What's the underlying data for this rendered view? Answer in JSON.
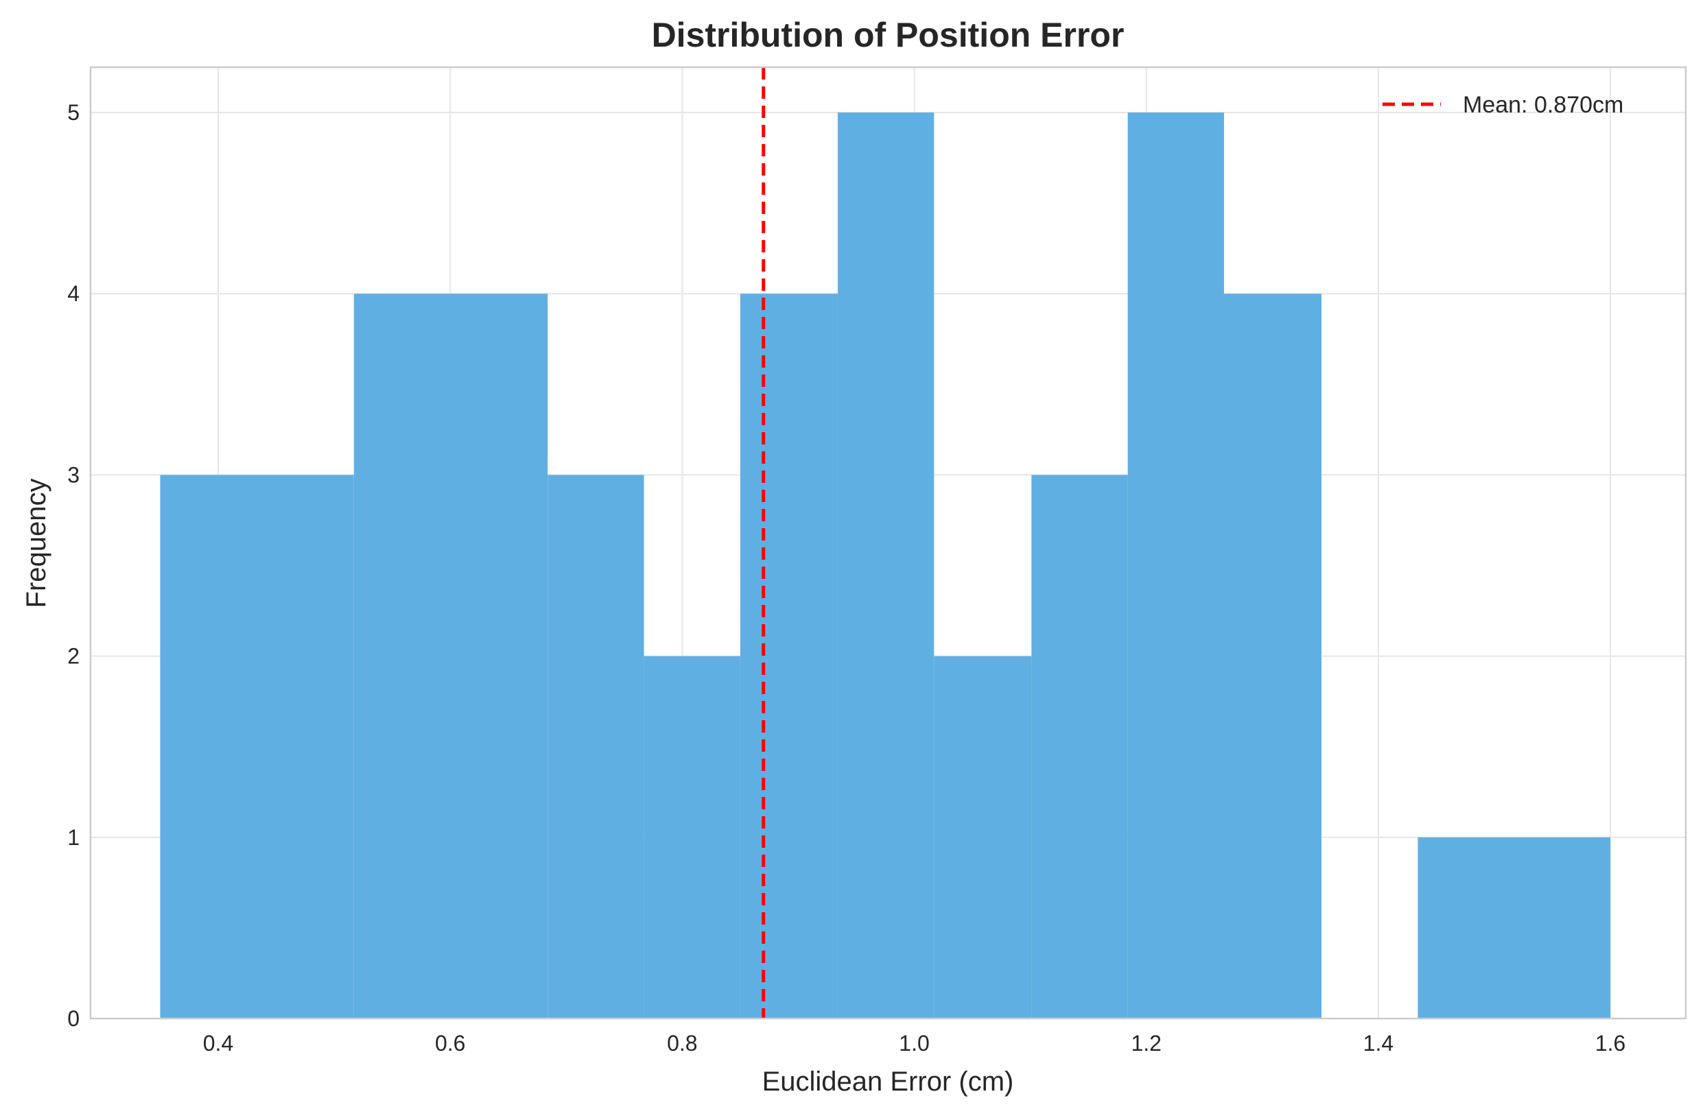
{
  "chart_data": {
    "type": "bar",
    "title": "Distribution of Position Error",
    "xlabel": "Euclidean Error (cm)",
    "ylabel": "Frequency",
    "xlim": [
      0.29,
      1.665
    ],
    "ylim": [
      0,
      5.25
    ],
    "xticks": [
      "0.4",
      "0.6",
      "0.8",
      "1.0",
      "1.2",
      "1.4",
      "1.6"
    ],
    "xtick_values": [
      0.4,
      0.6,
      0.8,
      1.0,
      1.2,
      1.4,
      1.6
    ],
    "yticks": [
      "0",
      "1",
      "2",
      "3",
      "4",
      "5"
    ],
    "ytick_values": [
      0,
      1,
      2,
      3,
      4,
      5
    ],
    "grid": true,
    "legend_position": "top-right",
    "bins": [
      {
        "x0": 0.35,
        "x1": 0.517,
        "count": 3
      },
      {
        "x0": 0.517,
        "x1": 0.684,
        "count": 4
      },
      {
        "x0": 0.684,
        "x1": 0.767,
        "count": 3
      },
      {
        "x0": 0.767,
        "x1": 0.85,
        "count": 2
      },
      {
        "x0": 0.85,
        "x1": 0.934,
        "count": 4
      },
      {
        "x0": 0.934,
        "x1": 1.017,
        "count": 5
      },
      {
        "x0": 1.017,
        "x1": 1.101,
        "count": 2
      },
      {
        "x0": 1.101,
        "x1": 1.184,
        "count": 3
      },
      {
        "x0": 1.184,
        "x1": 1.267,
        "count": 5
      },
      {
        "x0": 1.267,
        "x1": 1.351,
        "count": 4
      },
      {
        "x0": 1.351,
        "x1": 1.434,
        "count": 0
      },
      {
        "x0": 1.434,
        "x1": 1.6,
        "count": 1
      }
    ],
    "bar_color": "#5dade2",
    "mean_line": {
      "value": 0.87,
      "label": "Mean: 0.870cm",
      "color": "#ff0000"
    }
  }
}
